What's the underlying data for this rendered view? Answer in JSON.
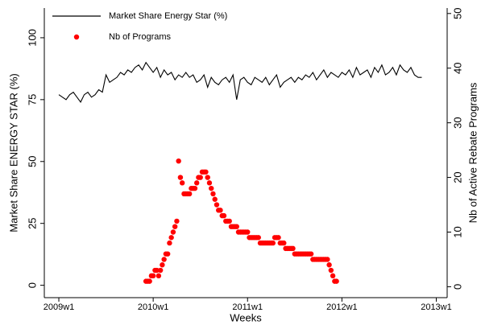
{
  "chart_data": {
    "type": "line",
    "xlabel": "Weeks",
    "ylabel": "Market Share ENERGY STAR (%)",
    "y2label": "Nb of Active Rebate Programs",
    "legend": "top-left",
    "xlim": [
      -8,
      214
    ],
    "xticks": [
      {
        "value": 0,
        "label": "2009w1"
      },
      {
        "value": 52,
        "label": "2010w1"
      },
      {
        "value": 104,
        "label": "2011w1"
      },
      {
        "value": 156,
        "label": "2012w1"
      },
      {
        "value": 208,
        "label": "2013w1"
      }
    ],
    "ylim": [
      -5,
      112
    ],
    "yticks": [
      0,
      25,
      50,
      75,
      100
    ],
    "y2lim": [
      -2,
      51
    ],
    "y2ticks": [
      0,
      10,
      20,
      30,
      40,
      50
    ],
    "series": [
      {
        "name": "Market Share Energy Star (%)",
        "color": "#000000",
        "type": "line",
        "x": [
          0,
          2,
          4,
          6,
          8,
          10,
          12,
          14,
          16,
          18,
          20,
          22,
          24,
          26,
          28,
          30,
          32,
          34,
          36,
          38,
          40,
          42,
          44,
          46,
          48,
          50,
          52,
          54,
          56,
          58,
          60,
          62,
          64,
          66,
          68,
          70,
          72,
          74,
          76,
          78,
          80,
          82,
          84,
          86,
          88,
          90,
          92,
          94,
          96,
          98,
          100,
          102,
          104,
          106,
          108,
          110,
          112,
          114,
          116,
          118,
          120,
          122,
          124,
          126,
          128,
          130,
          132,
          134,
          136,
          138,
          140,
          142,
          144,
          146,
          148,
          150,
          152,
          154,
          156,
          158,
          160,
          162,
          164,
          166,
          168,
          170,
          172,
          174,
          176,
          178,
          180,
          182,
          184,
          186,
          188,
          190,
          192,
          194,
          196,
          198,
          200
        ],
        "values": [
          77,
          76,
          75,
          77,
          78,
          76,
          74,
          77,
          78,
          76,
          77,
          79,
          78,
          85,
          82,
          83,
          84,
          86,
          85,
          87,
          86,
          88,
          89,
          87,
          90,
          88,
          86,
          88,
          84,
          87,
          85,
          86,
          83,
          85,
          84,
          86,
          84,
          85,
          82,
          83,
          85,
          80,
          84,
          82,
          81,
          83,
          84,
          82,
          85,
          75,
          83,
          84,
          82,
          81,
          84,
          83,
          82,
          84,
          81,
          83,
          85,
          80,
          82,
          83,
          84,
          82,
          84,
          83,
          85,
          84,
          86,
          83,
          85,
          87,
          84,
          86,
          85,
          84,
          86,
          85,
          87,
          84,
          88,
          85,
          86,
          87,
          84,
          88,
          86,
          89,
          85,
          86,
          88,
          85,
          89,
          87,
          86,
          88,
          85,
          84,
          84
        ]
      },
      {
        "name": "Nb of Programs",
        "color": "#ff0000",
        "type": "scatter",
        "axis": "y2",
        "x": [
          48,
          49,
          50,
          51,
          52,
          53,
          54,
          55,
          56,
          57,
          58,
          59,
          60,
          61,
          62,
          63,
          64,
          65,
          66,
          67,
          68,
          69,
          70,
          71,
          72,
          73,
          74,
          75,
          76,
          77,
          78,
          79,
          80,
          81,
          82,
          83,
          84,
          85,
          86,
          87,
          88,
          89,
          90,
          91,
          92,
          93,
          94,
          95,
          96,
          97,
          98,
          99,
          100,
          101,
          102,
          103,
          104,
          105,
          106,
          107,
          108,
          109,
          110,
          111,
          112,
          113,
          114,
          115,
          116,
          117,
          118,
          119,
          120,
          121,
          122,
          123,
          124,
          125,
          126,
          127,
          128,
          129,
          130,
          131,
          132,
          133,
          134,
          135,
          136,
          137,
          138,
          139,
          140,
          141,
          142,
          143,
          144,
          145,
          146,
          147,
          148,
          149,
          150,
          151,
          152,
          153
        ],
        "values": [
          1,
          1,
          1,
          2,
          2,
          3,
          3,
          2,
          3,
          4,
          5,
          6,
          6,
          8,
          9,
          10,
          11,
          12,
          23,
          20,
          19,
          17,
          17,
          17,
          17,
          18,
          18,
          18,
          19,
          20,
          20,
          21,
          21,
          21,
          20,
          19,
          18,
          17,
          16,
          15,
          14,
          14,
          13,
          13,
          12,
          12,
          12,
          11,
          11,
          11,
          11,
          10,
          10,
          10,
          10,
          10,
          10,
          9,
          9,
          9,
          9,
          9,
          9,
          8,
          8,
          8,
          8,
          8,
          8,
          8,
          8,
          9,
          9,
          9,
          8,
          8,
          8,
          7,
          7,
          7,
          7,
          7,
          6,
          6,
          6,
          6,
          6,
          6,
          6,
          6,
          6,
          6,
          5,
          5,
          5,
          5,
          5,
          5,
          5,
          5,
          5,
          4,
          3,
          2,
          1,
          1
        ]
      }
    ]
  }
}
